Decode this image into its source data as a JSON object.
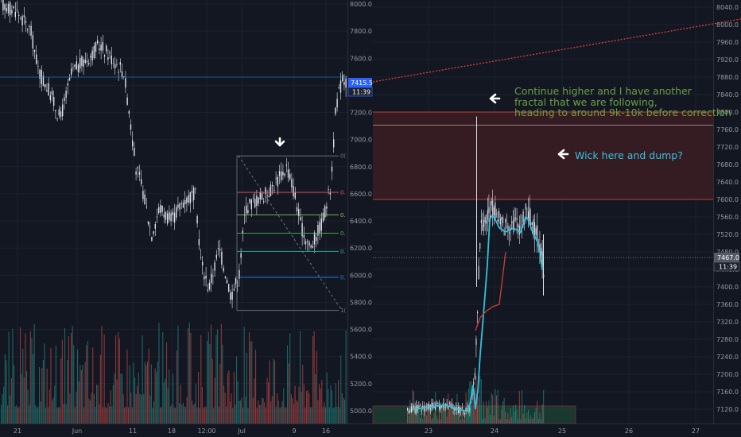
{
  "colors": {
    "background": "#131722",
    "grid": "#1c2130",
    "axis_text": "#9598a1",
    "candle_body": "#e0e3eb",
    "volume_up": "#26a69a",
    "volume_down": "#ef5350",
    "zone_fill": "#3a1d22",
    "zone_line": "#c23b3b",
    "trend_line": "#e04040",
    "line_bg": "#1e88e5",
    "line_tag": "#2962ff",
    "ema_fast": "#33c3dd",
    "ema_slow": "#c23b3b",
    "cur_tag": "#555a66",
    "vol_box": "#1f4d3a",
    "vol_box_border": "#c23b3b",
    "anno_green": "#6a9f45",
    "anno_cyan": "#33c3dd",
    "fib_colors": [
      "#787b86",
      "#ef5350",
      "#8bc34a",
      "#4caf50",
      "#26a69a",
      "#1e88e5",
      "#787b86"
    ]
  },
  "left_chart": {
    "y_ticks": [
      "8000.0",
      "7800.0",
      "7600.0",
      "7400.0",
      "7200.0",
      "7000.0",
      "6800.0",
      "6600.0",
      "6400.0",
      "6200.0",
      "6000.0",
      "5800.0",
      "5600.0",
      "5400.0",
      "5200.0",
      "5000.0"
    ],
    "x_ticks": [
      "21",
      "Jun",
      "11",
      "18",
      "12:00",
      "Jul",
      "9",
      "16"
    ],
    "price_tag": "7415.5",
    "time_tag": "11:39",
    "fib_labels": [
      "0(",
      "0.",
      "0.",
      "0.",
      "0.",
      "0.",
      "1("
    ],
    "fib_ratios": [
      0,
      0.236,
      0.382,
      0.5,
      0.618,
      0.786,
      1
    ],
    "fib_high": 6880,
    "fib_low": 5740,
    "marker_icon": "arrow-down-icon"
  },
  "right_chart": {
    "y_ticks": [
      "8040.0",
      "8000.0",
      "7960.0",
      "7920.0",
      "7880.0",
      "7840.0",
      "7800.0",
      "7760.0",
      "7720.0",
      "7680.0",
      "7640.0",
      "7600.0",
      "7560.0",
      "7520.0",
      "7480.0",
      "7440.0",
      "7400.0",
      "7360.0",
      "7320.0",
      "7280.0",
      "7240.0",
      "7200.0",
      "7160.0",
      "7120.0"
    ],
    "x_ticks": [
      "23",
      "24",
      "25",
      "26",
      "27"
    ],
    "price_tag": "7467.0",
    "time_tag": "11:39",
    "zone": {
      "top": 7800,
      "bottom": 7600
    },
    "target_line": 7770,
    "current_price": 7467,
    "annotation_1": {
      "icon": "arrow-left-icon",
      "lines": [
        "Continue higher and I have another",
        "fractal that we are following,",
        "heading to around 9k-10k before correction"
      ]
    },
    "annotation_2": {
      "icon": "arrow-left-icon",
      "text": "Wick here and dump?"
    }
  }
}
